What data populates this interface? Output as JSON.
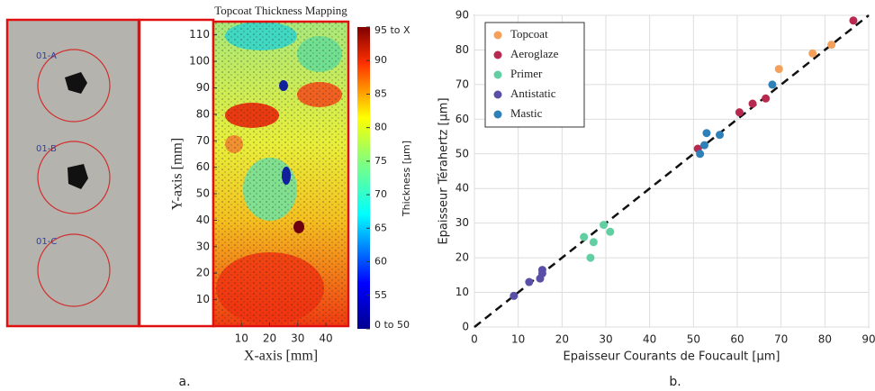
{
  "photo_labels": [
    "01-A",
    "01-B",
    "01-C"
  ],
  "chart_data": [
    {
      "type": "heatmap",
      "title": "Topcoat Thickness Mapping",
      "panel_label": "a.",
      "xlabel": "X-axis [mm]",
      "ylabel": "Y-axis [mm]",
      "xlim": [
        0,
        48
      ],
      "xticks": [
        10,
        20,
        30,
        40
      ],
      "ylim": [
        0,
        115
      ],
      "yticks": [
        10,
        20,
        30,
        40,
        50,
        60,
        70,
        80,
        90,
        100,
        110
      ],
      "colorbar_label": "Thickness [µm]",
      "clim": [
        50,
        95
      ],
      "cticks": [
        {
          "value": 50,
          "label": "0 to 50"
        },
        55,
        60,
        65,
        70,
        75,
        80,
        85,
        90,
        {
          "value": 95,
          "label": "95 to X"
        }
      ]
    },
    {
      "type": "scatter",
      "panel_label": "b.",
      "xlabel": "Epaisseur Courants de Foucault [µm]",
      "ylabel": "Epaisseur Térahertz [µm]",
      "xlim": [
        0,
        90
      ],
      "xticks": [
        0,
        10,
        20,
        30,
        40,
        50,
        60,
        70,
        80,
        90
      ],
      "ylim": [
        0,
        90
      ],
      "yticks": [
        0,
        10,
        20,
        30,
        40,
        50,
        60,
        70,
        80,
        90
      ],
      "grid": true,
      "legend": "upper left",
      "series": [
        {
          "name": "Topcoat",
          "color": "#f5a05a",
          "x": [
            69.5,
            77.2,
            81.5
          ],
          "values": [
            74.5,
            79,
            81.5
          ]
        },
        {
          "name": "Aeroglaze",
          "color": "#b8294f",
          "x": [
            51,
            60.5,
            63.5,
            66.5,
            86.5
          ],
          "values": [
            51.5,
            62,
            64.5,
            66,
            88.5
          ]
        },
        {
          "name": "Primer",
          "color": "#62cfa2",
          "x": [
            25,
            26.5,
            27.2,
            29.5,
            31
          ],
          "values": [
            26,
            20,
            24.5,
            29.5,
            27.5
          ]
        },
        {
          "name": "Antistatic",
          "color": "#5a4fa6",
          "x": [
            9,
            12.5,
            15,
            15.5,
            15.5
          ],
          "values": [
            9,
            13,
            14,
            15.5,
            16.5
          ]
        },
        {
          "name": "Mastic",
          "color": "#2f80b8",
          "x": [
            51.5,
            52.5,
            53,
            56,
            68
          ],
          "values": [
            50,
            52.5,
            56,
            55.5,
            70
          ]
        }
      ]
    }
  ]
}
